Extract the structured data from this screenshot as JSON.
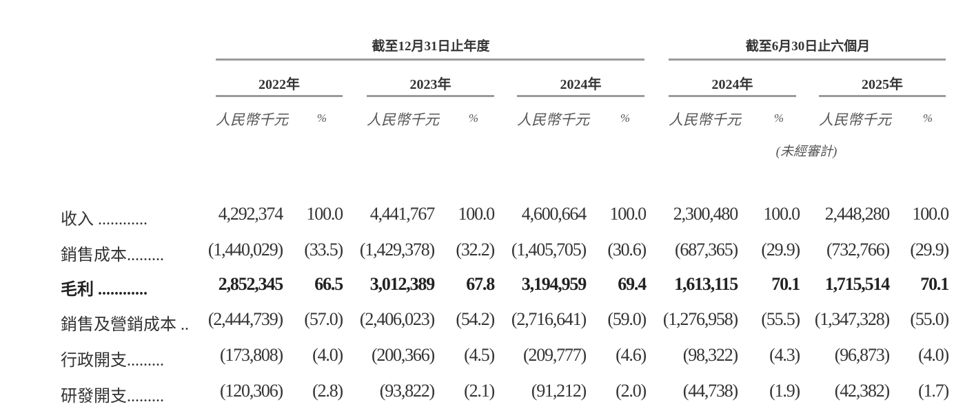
{
  "header": {
    "group_annual": "截至12月31日止年度",
    "group_half": "截至6月30日止六個月",
    "years": [
      "2022年",
      "2023年",
      "2024年",
      "2024年",
      "2025年"
    ],
    "unit_label": "人民幣千元",
    "pct_label": "%",
    "unaudited": "(未經審計)"
  },
  "rows": [
    {
      "label": "收入 ............",
      "bold": false,
      "values": [
        "4,292,374",
        "100.0",
        "4,441,767",
        "100.0",
        "4,600,664",
        "100.0",
        "2,300,480",
        "100.0",
        "2,448,280",
        "100.0"
      ]
    },
    {
      "label": "銷售成本.........",
      "bold": false,
      "values": [
        "(1,440,029)",
        "(33.5)",
        "(1,429,378)",
        "(32.2)",
        "(1,405,705)",
        "(30.6)",
        "(687,365)",
        "(29.9)",
        "(732,766)",
        "(29.9)"
      ]
    },
    {
      "label": "毛利 ............",
      "bold": true,
      "values": [
        "2,852,345",
        "66.5",
        "3,012,389",
        "67.8",
        "3,194,959",
        "69.4",
        "1,613,115",
        "70.1",
        "1,715,514",
        "70.1"
      ]
    },
    {
      "label": "銷售及營銷成本 ..",
      "bold": false,
      "values": [
        "(2,444,739)",
        "(57.0)",
        "(2,406,023)",
        "(54.2)",
        "(2,716,641)",
        "(59.0)",
        "(1,276,958)",
        "(55.5)",
        "(1,347,328)",
        "(55.0)"
      ]
    },
    {
      "label": "行政開支.........",
      "bold": false,
      "values": [
        "(173,808)",
        "(4.0)",
        "(200,366)",
        "(4.5)",
        "(209,777)",
        "(4.6)",
        "(98,322)",
        "(4.3)",
        "(96,873)",
        "(4.0)"
      ]
    },
    {
      "label": "研發開支.........",
      "bold": false,
      "values": [
        "(120,306)",
        "(2.8)",
        "(93,822)",
        "(2.1)",
        "(91,212)",
        "(2.0)",
        "(44,738)",
        "(1.9)",
        "(42,382)",
        "(1.7)"
      ]
    }
  ]
}
